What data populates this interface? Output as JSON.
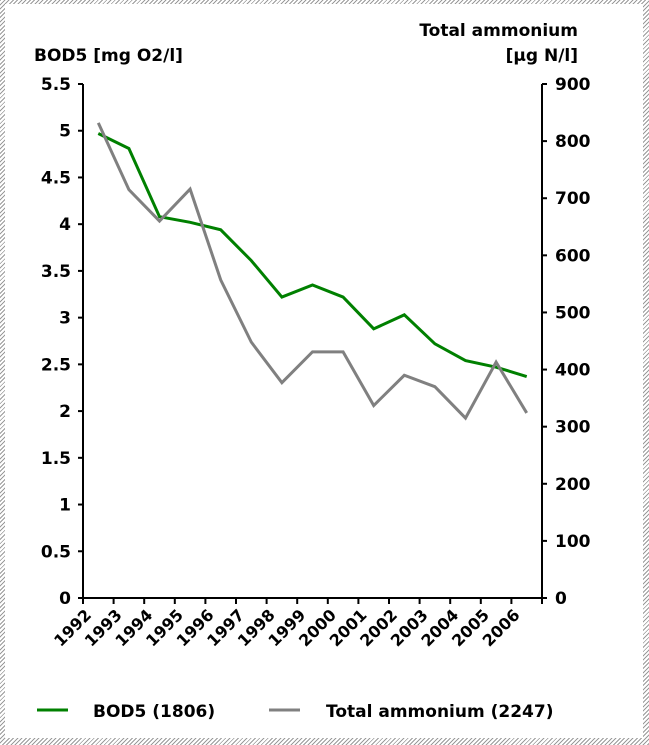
{
  "chart_data": {
    "type": "line",
    "categories": [
      "1992",
      "1993",
      "1994",
      "1995",
      "1996",
      "1997",
      "1998",
      "1999",
      "2000",
      "2001",
      "2002",
      "2003",
      "2004",
      "2005",
      "2006"
    ],
    "y_left": {
      "label": "BOD5 [mg O2/l]",
      "range": [
        0,
        5.5
      ],
      "ticks": [
        "0",
        "0.5",
        "1",
        "1.5",
        "2",
        "2.5",
        "3",
        "3.5",
        "4",
        "4.5",
        "5",
        "5.5"
      ]
    },
    "y_right": {
      "label_line1": "Total ammonium",
      "label_line2": "[µg N/l]",
      "range": [
        0,
        900
      ],
      "ticks": [
        "0",
        "100",
        "200",
        "300",
        "400",
        "500",
        "600",
        "700",
        "800",
        "900"
      ]
    },
    "series": [
      {
        "name": "BOD5 (1806)",
        "axis": "left",
        "color": "#008000",
        "values": [
          4.97,
          4.81,
          4.08,
          4.02,
          3.94,
          3.61,
          3.22,
          3.35,
          3.22,
          2.88,
          3.03,
          2.72,
          2.54,
          2.47,
          2.37
        ]
      },
      {
        "name": "Total ammonium (2247)",
        "axis": "right",
        "color": "#808080",
        "values": [
          832,
          715,
          660,
          716,
          557,
          448,
          377,
          431,
          431,
          337,
          390,
          370,
          315,
          413,
          324
        ]
      }
    ],
    "legend": "bottom",
    "grid": false
  }
}
